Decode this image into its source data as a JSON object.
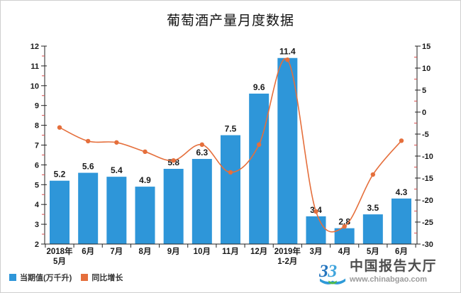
{
  "chart_data": {
    "type": "combo",
    "title": "葡萄酒产量月度数据",
    "categories": [
      "2018年\n5月",
      "6月",
      "7月",
      "8月",
      "9月",
      "10月",
      "11月",
      "12月",
      "2019年\n1-2月",
      "3月",
      "4月",
      "5月",
      "6月"
    ],
    "series": [
      {
        "name": "当期值(万千升)",
        "type": "bar",
        "axis": "left",
        "color": "#2E96D9",
        "values": [
          5.2,
          5.6,
          5.4,
          4.9,
          5.8,
          6.3,
          7.5,
          9.6,
          11.4,
          3.4,
          2.8,
          3.5,
          4.3
        ]
      },
      {
        "name": "同比增长",
        "type": "line",
        "axis": "right",
        "color": "#E56F3C",
        "values": [
          -3.5,
          -6.6,
          -6.9,
          -9.0,
          -11.0,
          -7.4,
          -13.7,
          -7.4,
          11.9,
          -22.6,
          -26.0,
          -14.2,
          -6.5
        ]
      }
    ],
    "left_axis": {
      "min": 2,
      "max": 12,
      "ticks": [
        2,
        3,
        4,
        5,
        6,
        7,
        8,
        9,
        10,
        11,
        12
      ],
      "minor_interval": 0.5
    },
    "right_axis": {
      "min": -30,
      "max": 15,
      "ticks": [
        15,
        10,
        5,
        0,
        -5,
        -10,
        -15,
        -20,
        -25,
        -30
      ],
      "minor_interval": 2.5
    },
    "minor_tick_color": "#D94F4F",
    "axis_color": "#222222",
    "label_color": "#1a1a1a",
    "legend_position": "bottom-left",
    "grid": false
  },
  "watermark": {
    "brand": "中国报告大厅",
    "url": "www.chinabgao.com"
  }
}
